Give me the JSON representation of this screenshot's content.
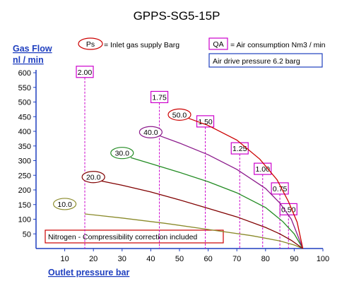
{
  "chart_data": {
    "type": "line",
    "title": "GPPS-SG5-15P",
    "xlabel": "Outlet pressure   bar",
    "ylabel_line1": "Gas Flow",
    "ylabel_line2": "nl / min",
    "xlim": [
      0,
      100
    ],
    "ylim": [
      0,
      600
    ],
    "x_ticks": [
      10,
      20,
      30,
      40,
      50,
      60,
      70,
      80,
      90,
      100
    ],
    "y_ticks": [
      50,
      100,
      150,
      200,
      250,
      300,
      350,
      400,
      450,
      500,
      550,
      600
    ],
    "grid": false,
    "legend_ps_key": "Ps",
    "legend_ps_text": "= Inlet gas supply  Barg",
    "legend_qa_key": "QA",
    "legend_qa_text": "= Air consumption  Nm3 / min",
    "air_drive_text": "Air drive pressure  6.2 barg",
    "note_text": "Nitrogen - Compressibility correction included",
    "colors": {
      "axis": "#1f3fbf",
      "magenta": "#cc00cc",
      "note_border": "#cc0000"
    },
    "series": [
      {
        "name": "10.0",
        "color": "#8a8a2a",
        "label_at": [
          10,
          152
        ],
        "x": [
          17,
          30,
          45,
          60,
          75,
          85,
          90,
          93
        ],
        "y": [
          118,
          104,
          86,
          65,
          44,
          26,
          12,
          0
        ]
      },
      {
        "name": "20.0",
        "color": "#800000",
        "label_at": [
          20,
          244
        ],
        "x": [
          22,
          30,
          40,
          50,
          60,
          70,
          80,
          85,
          89,
          93
        ],
        "y": [
          232,
          216,
          193,
          166,
          137,
          108,
          72,
          50,
          28,
          0
        ]
      },
      {
        "name": "30.0",
        "color": "#228b22",
        "label_at": [
          30,
          326
        ],
        "x": [
          33,
          40,
          50,
          60,
          70,
          80,
          86,
          90,
          93
        ],
        "y": [
          310,
          290,
          260,
          228,
          190,
          140,
          92,
          50,
          0
        ]
      },
      {
        "name": "40.0",
        "color": "#8b1a8b",
        "label_at": [
          40,
          397
        ],
        "x": [
          43,
          50,
          60,
          70,
          80,
          85,
          89,
          93
        ],
        "y": [
          385,
          360,
          320,
          270,
          205,
          155,
          100,
          0
        ]
      },
      {
        "name": "50.0",
        "color": "#cc0000",
        "label_at": [
          50,
          457
        ],
        "x": [
          53,
          60,
          70,
          78,
          84,
          88,
          91,
          93
        ],
        "y": [
          445,
          420,
          370,
          305,
          235,
          160,
          90,
          0
        ]
      }
    ],
    "qa_markers": [
      {
        "label": "2.00",
        "x": 17,
        "top": 603
      },
      {
        "label": "1.75",
        "x": 43,
        "top": 517
      },
      {
        "label": "1.50",
        "x": 59,
        "top": 434
      },
      {
        "label": "1.25",
        "x": 71,
        "top": 342
      },
      {
        "label": "1.00",
        "x": 79,
        "top": 272
      },
      {
        "label": "0.75",
        "x": 85,
        "top": 205
      },
      {
        "label": "0.50",
        "x": 88,
        "top": 134
      }
    ]
  }
}
